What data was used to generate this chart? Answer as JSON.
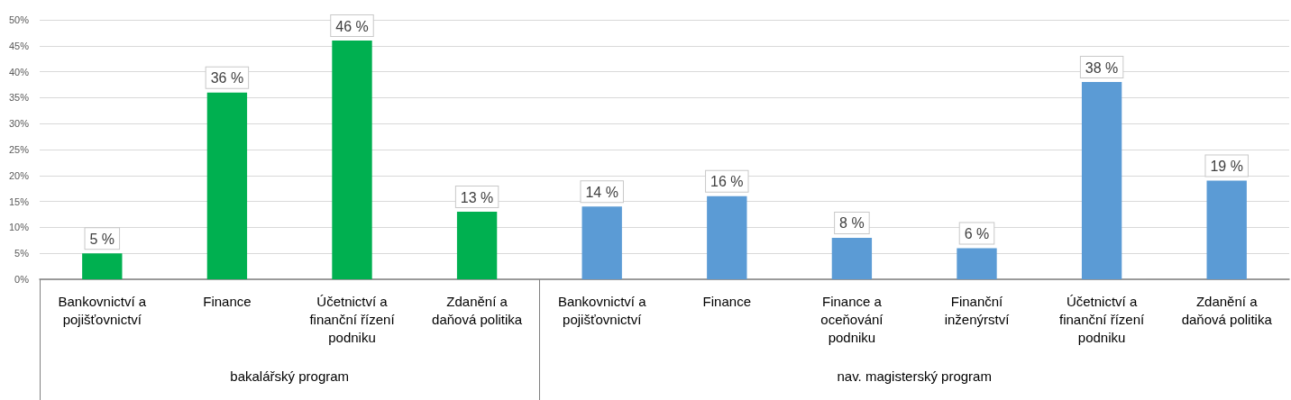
{
  "chart_data": {
    "type": "bar",
    "categories": [
      "Bankovnictví a pojišťovnictví",
      "Finance",
      "Účetnictví a finanční řízení podniku",
      "Zdanění a daňová politika",
      "Bankovnictví a pojišťovnictví",
      "Finance",
      "Finance a oceňování podniku",
      "Finanční inženýrství",
      "Účetnictví a finanční řízení podniku",
      "Zdanění a daňová politika"
    ],
    "series": [
      {
        "color": "#00b050",
        "values": [
          5,
          36,
          46,
          13,
          null,
          null,
          null,
          null,
          null,
          null
        ],
        "value_labels": [
          "5 %",
          "36 %",
          "46 %",
          "13 %",
          null,
          null,
          null,
          null,
          null,
          null
        ]
      },
      {
        "color": "#5b9bd5",
        "values": [
          null,
          null,
          null,
          null,
          14,
          16,
          8,
          6,
          38,
          19
        ],
        "value_labels": [
          null,
          null,
          null,
          null,
          "14 %",
          "16 %",
          "8 %",
          "6 %",
          "38 %",
          "19 %"
        ]
      }
    ],
    "ylim": [
      0,
      50
    ],
    "yticks": [
      {
        "value": 0,
        "label": "0%"
      },
      {
        "value": 5,
        "label": "5%"
      },
      {
        "value": 10,
        "label": "10%"
      },
      {
        "value": 15,
        "label": "15%"
      },
      {
        "value": 20,
        "label": "20%"
      },
      {
        "value": 25,
        "label": "25%"
      },
      {
        "value": 30,
        "label": "30%"
      },
      {
        "value": 35,
        "label": "35%"
      },
      {
        "value": 40,
        "label": "40%"
      },
      {
        "value": 45,
        "label": "45%"
      },
      {
        "value": 50,
        "label": "50%"
      }
    ],
    "grid": "y",
    "annotations": [
      "bakalářský program",
      "nav. magisterský program"
    ]
  }
}
